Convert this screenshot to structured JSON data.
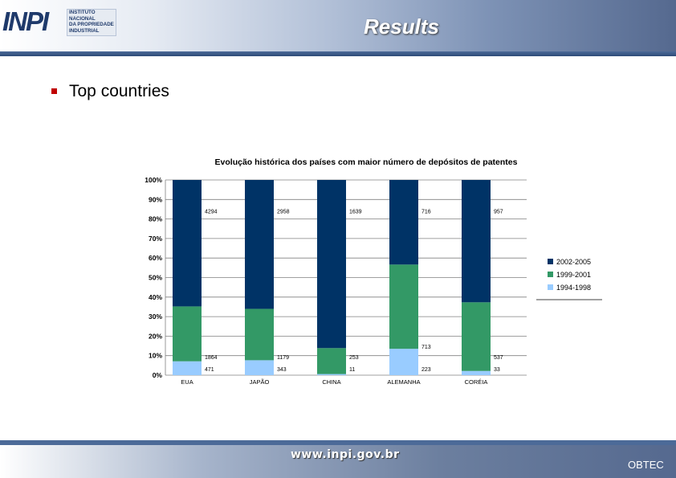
{
  "header": {
    "logo_mark": "INPI",
    "logo_lines": [
      "INSTITUTO",
      "NACIONAL",
      "DA PROPRIEDADE",
      "INDUSTRIAL"
    ],
    "title": "Results"
  },
  "content": {
    "bullet": "Top countries"
  },
  "chart_data": {
    "type": "bar",
    "stacked": "percent",
    "title": "Evolução histórica dos países com maior número de depósitos de patentes",
    "categories": [
      "EUA",
      "JAPÃO",
      "CHINA",
      "ALEMANHA",
      "CORÉIA"
    ],
    "series": [
      {
        "name": "1994-1998",
        "color": "#99ccff",
        "values": [
          471,
          343,
          11,
          223,
          33
        ]
      },
      {
        "name": "1999-2001",
        "color": "#339966",
        "values": [
          1864,
          1179,
          253,
          713,
          537
        ]
      },
      {
        "name": "2002-2005",
        "color": "#003366",
        "values": [
          4294,
          2958,
          1639,
          716,
          957
        ]
      }
    ],
    "yticks": [
      "0%",
      "10%",
      "20%",
      "30%",
      "40%",
      "50%",
      "60%",
      "70%",
      "80%",
      "90%",
      "100%"
    ],
    "ylim": [
      0,
      100
    ],
    "grid": true,
    "legend": "right"
  },
  "footer": {
    "website": "www.inpi.gov.br",
    "org": "OBTEC"
  }
}
